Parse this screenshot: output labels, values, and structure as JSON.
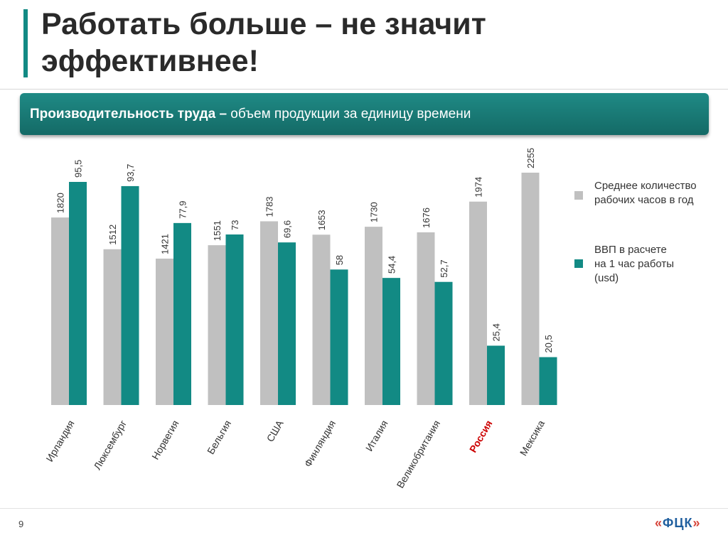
{
  "slide": {
    "title_line1": "Работать больше – не значит",
    "title_line2": "эффективнее!",
    "banner_bold": "Производительность труда –",
    "banner_rest": " объем продукции за единицу времени",
    "page_number": "9",
    "logo": "ФЦК"
  },
  "colors": {
    "accent": "#128a84",
    "banner": "#1a7b77",
    "hours_bar": "#c0c0c0",
    "gdp_bar": "#128a84",
    "highlight_label": "#cc0000"
  },
  "chart_data": {
    "type": "bar",
    "categories": [
      "Ирландия",
      "Люксембург",
      "Норвегия",
      "Бельгия",
      "США",
      "Финляндия",
      "Италия",
      "Великобритания",
      "Россия",
      "Мексика"
    ],
    "highlighted_category": "Россия",
    "series": [
      {
        "name": "Среднее количество рабочих часов в год",
        "color": "#c0c0c0",
        "values": [
          1820,
          1512,
          1421,
          1551,
          1783,
          1653,
          1730,
          1676,
          1974,
          2255
        ],
        "labels": [
          "1820",
          "1512",
          "1421",
          "1551",
          "1783",
          "1653",
          "1730",
          "1676",
          "1974",
          "2255"
        ]
      },
      {
        "name": "ВВП в расчете на 1 час работы (usd)",
        "color": "#128a84",
        "values": [
          95.5,
          93.7,
          77.9,
          73,
          69.6,
          58,
          54.4,
          52.7,
          25.4,
          20.5
        ],
        "labels": [
          "95,5",
          "93,7",
          "77,9",
          "73",
          "69,6",
          "58",
          "54,4",
          "52,7",
          "25,4",
          "20,5"
        ]
      }
    ],
    "legend": {
      "position": "right",
      "items": [
        "Среднее количество\nрабочих часов в год",
        "ВВП в расчете\nна 1 час работы\n(usd)"
      ]
    },
    "ylabel": "",
    "xlabel": "",
    "grid": false
  }
}
